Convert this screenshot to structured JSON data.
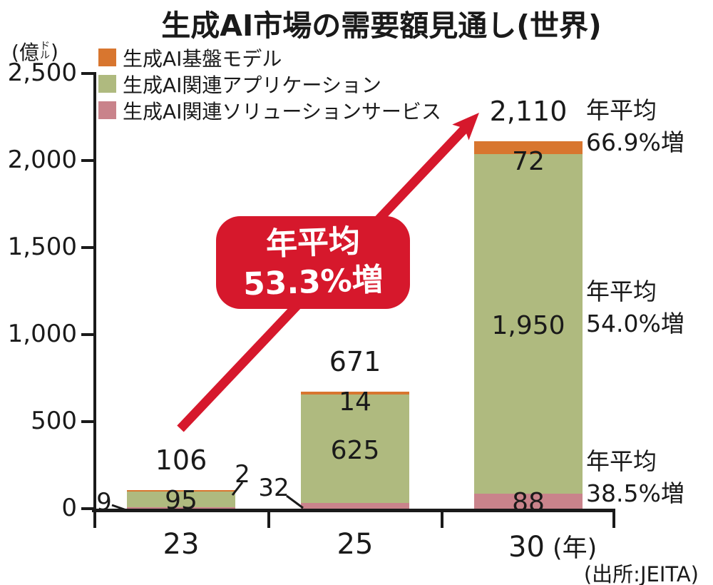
{
  "chart_data": {
    "type": "bar",
    "variant": "stacked-column",
    "title": "生成AI市場の需要額見通し(世界)",
    "unit": {
      "prefix": "(億",
      "stack_top": "ド",
      "stack_bottom": "ル",
      "suffix": ")"
    },
    "categories": [
      "23",
      "25",
      "30"
    ],
    "x_axis_suffix": "(年)",
    "ylim": [
      0,
      2500
    ],
    "yticks": [
      0,
      500,
      1000,
      1500,
      2000,
      2500
    ],
    "ytick_labels": [
      "0",
      "500",
      "1,000",
      "1,500",
      "2,000",
      "2,500"
    ],
    "series": [
      {
        "name": "生成AI関連ソリューションサービス",
        "color": "#c9838b",
        "values": [
          9,
          32,
          88
        ]
      },
      {
        "name": "生成AI関連アプリケーション",
        "color": "#afba7f",
        "values": [
          95,
          625,
          1950
        ]
      },
      {
        "name": "生成AI基盤モデル",
        "color": "#d8762f",
        "values": [
          2,
          14,
          72
        ]
      }
    ],
    "totals": [
      106,
      671,
      2110
    ],
    "total_labels": [
      "106",
      "671",
      "2,110"
    ],
    "value_labels": [
      [
        "9",
        "95",
        "2"
      ],
      [
        "32",
        "625",
        "14"
      ],
      [
        "88",
        "1,950",
        "72"
      ]
    ],
    "grid": false,
    "legend_position": "top-left"
  },
  "legend": {
    "items": [
      {
        "label": "生成AI基盤モデル",
        "color": "#d8762f"
      },
      {
        "label": "生成AI関連アプリケーション",
        "color": "#afba7f"
      },
      {
        "label": "生成AI関連ソリューションサービス",
        "color": "#c9838b"
      }
    ]
  },
  "annotations": {
    "badge": {
      "lines": [
        "年平均",
        "53.3%増"
      ],
      "color": "#d6182c"
    },
    "right": [
      {
        "lines": [
          "年平均",
          "66.9%増"
        ]
      },
      {
        "lines": [
          "年平均",
          "54.0%増"
        ]
      },
      {
        "lines": [
          "年平均",
          "38.5%増"
        ]
      }
    ]
  },
  "source": "(出所:JEITA)"
}
